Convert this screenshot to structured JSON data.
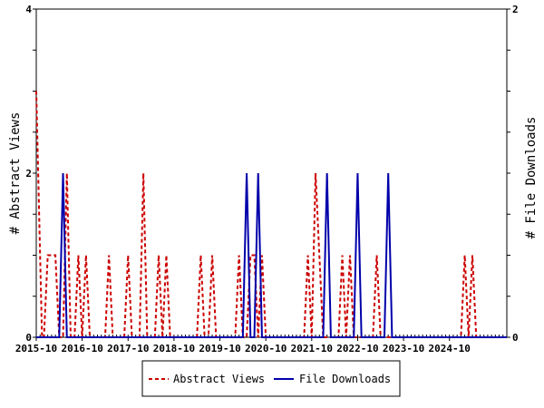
{
  "chart_data": {
    "type": "line",
    "ylabel_left": "# Abstract Views",
    "ylabel_right": "# File Downloads",
    "x_tick_labels": [
      "2015-10",
      "2016-10",
      "2017-10",
      "2018-10",
      "2019-10",
      "2020-10",
      "2021-10",
      "2022-10",
      "2023-10",
      "2024-10"
    ],
    "y_left_ticks": [
      "0",
      "2",
      "4"
    ],
    "y_right_ticks": [
      "0",
      "2"
    ],
    "y_left_range": [
      0,
      4
    ],
    "y_right_range": [
      0,
      2
    ],
    "x_range_months": [
      0,
      123
    ],
    "legend_placement": "bottom-center",
    "series": [
      {
        "name": "Abstract Views",
        "axis": "left",
        "color": "#cc0000",
        "style": "dashed",
        "points": [
          [
            0,
            3
          ],
          [
            0.5,
            2
          ],
          [
            1,
            1
          ],
          [
            1.5,
            0
          ],
          [
            2,
            0
          ],
          [
            2.5,
            0.5
          ],
          [
            3,
            1
          ],
          [
            4,
            1
          ],
          [
            5,
            1
          ],
          [
            6,
            0
          ],
          [
            7,
            0
          ],
          [
            7.5,
            1
          ],
          [
            8,
            2
          ],
          [
            8.5,
            1
          ],
          [
            9,
            0
          ],
          [
            10,
            0
          ],
          [
            11,
            1
          ],
          [
            12,
            0
          ],
          [
            13,
            1
          ],
          [
            14,
            0
          ],
          [
            15,
            0
          ],
          [
            16,
            0
          ],
          [
            17,
            0
          ],
          [
            18,
            0
          ],
          [
            19,
            1
          ],
          [
            20,
            0
          ],
          [
            21,
            0
          ],
          [
            22,
            0
          ],
          [
            23,
            0
          ],
          [
            24,
            1
          ],
          [
            25,
            0
          ],
          [
            26,
            0
          ],
          [
            27,
            0
          ],
          [
            28,
            2
          ],
          [
            29,
            0
          ],
          [
            30,
            0
          ],
          [
            31,
            0
          ],
          [
            32,
            1
          ],
          [
            33,
            0
          ],
          [
            34,
            1
          ],
          [
            35,
            0
          ],
          [
            36,
            0
          ],
          [
            37,
            0
          ],
          [
            38,
            0
          ],
          [
            39,
            0
          ],
          [
            40,
            0
          ],
          [
            41,
            0
          ],
          [
            42,
            0
          ],
          [
            43,
            1
          ],
          [
            44,
            0
          ],
          [
            45,
            0
          ],
          [
            46,
            1
          ],
          [
            47,
            0
          ],
          [
            48,
            0
          ],
          [
            49,
            0
          ],
          [
            50,
            0
          ],
          [
            51,
            0
          ],
          [
            52,
            0
          ],
          [
            53,
            1
          ],
          [
            54,
            0
          ],
          [
            55,
            0
          ],
          [
            56,
            1
          ],
          [
            57,
            1
          ],
          [
            58,
            0
          ],
          [
            59,
            1
          ],
          [
            60,
            0
          ],
          [
            61,
            0
          ],
          [
            62,
            0
          ],
          [
            63,
            0
          ],
          [
            64,
            0
          ],
          [
            65,
            0
          ],
          [
            66,
            0
          ],
          [
            67,
            0
          ],
          [
            68,
            0
          ],
          [
            69,
            0
          ],
          [
            70,
            0
          ],
          [
            71,
            1
          ],
          [
            72,
            0
          ],
          [
            73,
            2
          ],
          [
            74,
            1
          ],
          [
            75,
            0
          ],
          [
            76,
            0
          ],
          [
            77,
            0
          ],
          [
            78,
            0
          ],
          [
            79,
            0
          ],
          [
            80,
            1
          ],
          [
            81,
            0
          ],
          [
            82,
            1
          ],
          [
            83,
            0
          ],
          [
            84,
            0
          ],
          [
            85,
            0
          ],
          [
            86,
            0
          ],
          [
            87,
            0
          ],
          [
            88,
            0
          ],
          [
            89,
            1
          ],
          [
            90,
            0
          ],
          [
            91,
            0
          ],
          [
            92,
            0
          ],
          [
            93,
            0
          ],
          [
            94,
            0
          ],
          [
            95,
            0
          ],
          [
            96,
            0
          ],
          [
            97,
            0
          ],
          [
            98,
            0
          ],
          [
            99,
            0
          ],
          [
            100,
            0
          ],
          [
            101,
            0
          ],
          [
            102,
            0
          ],
          [
            103,
            0
          ],
          [
            104,
            0
          ],
          [
            105,
            0
          ],
          [
            106,
            0
          ],
          [
            107,
            0
          ],
          [
            108,
            0
          ],
          [
            109,
            0
          ],
          [
            110,
            0
          ],
          [
            111,
            0
          ],
          [
            112,
            1
          ],
          [
            113,
            0
          ],
          [
            114,
            1
          ],
          [
            115,
            0
          ],
          [
            116,
            0
          ],
          [
            117,
            0
          ],
          [
            118,
            0
          ],
          [
            119,
            0
          ],
          [
            120,
            0
          ],
          [
            121,
            0
          ],
          [
            122,
            0
          ],
          [
            123,
            0
          ]
        ]
      },
      {
        "name": "File Downloads",
        "axis": "right",
        "color": "#0000aa",
        "style": "solid",
        "points": [
          [
            0,
            0
          ],
          [
            6,
            0
          ],
          [
            7,
            1
          ],
          [
            8,
            0
          ],
          [
            9,
            0
          ],
          [
            54,
            0
          ],
          [
            55,
            1
          ],
          [
            56,
            0
          ],
          [
            57,
            0
          ],
          [
            58,
            1
          ],
          [
            59,
            0
          ],
          [
            60,
            0
          ],
          [
            75,
            0
          ],
          [
            76,
            1
          ],
          [
            77,
            0
          ],
          [
            83,
            0
          ],
          [
            84,
            1
          ],
          [
            85,
            0
          ],
          [
            91,
            0
          ],
          [
            92,
            1
          ],
          [
            93,
            0
          ],
          [
            123,
            0
          ]
        ]
      }
    ]
  }
}
